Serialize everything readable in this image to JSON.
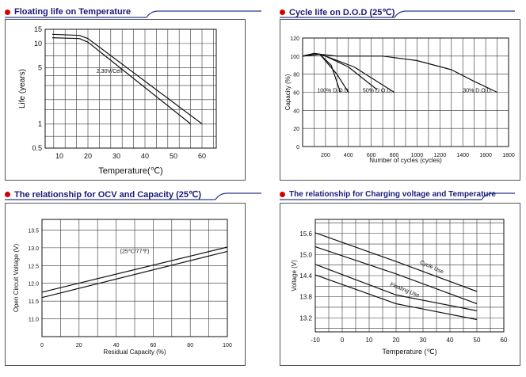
{
  "panels": {
    "p1": {
      "title": "Floating life on Temperature"
    },
    "p2": {
      "title": "Cycle life on D.O.D (25℃)"
    },
    "p3": {
      "title": "The relationship  for OCV and Capacity (25℃)"
    },
    "p4": {
      "title": "The relationship for Charging voltage and Temperature"
    }
  },
  "chart_data": [
    {
      "id": "floating-life",
      "type": "line",
      "title": "Floating life on Temperature",
      "xlabel": "Temperature(℃)",
      "ylabel": "Life (years)",
      "yscale": "log",
      "xlim": [
        5,
        65
      ],
      "ylim": [
        0.5,
        15
      ],
      "x_ticks": [
        "10",
        "20",
        "30",
        "40",
        "50",
        "60"
      ],
      "y_ticks": [
        "15",
        "10",
        "5",
        "1",
        "0.5"
      ],
      "y_tick_values": [
        15,
        10,
        5,
        1,
        0.5
      ],
      "annotations": [
        {
          "text": "2.30V/Cell",
          "x": 27.5,
          "y": 4.3
        }
      ],
      "series": [
        {
          "name": "upper",
          "points": [
            [
              7.5,
              13
            ],
            [
              17,
              12.6
            ],
            [
              20,
              11.5
            ],
            [
              60,
              1
            ]
          ]
        },
        {
          "name": "lower",
          "points": [
            [
              7.5,
              11.8
            ],
            [
              17,
              11.5
            ],
            [
              20,
              10.4
            ],
            [
              56,
              1
            ]
          ]
        }
      ]
    },
    {
      "id": "cycle-life",
      "type": "line",
      "title": "Cycle life on D.O.D (25℃)",
      "xlabel": "Number of cycles (cycles)",
      "ylabel": "Capacity (%)",
      "xlim": [
        0,
        1800
      ],
      "ylim": [
        0,
        120
      ],
      "x_ticks": [
        "200",
        "400",
        "600",
        "800",
        "1000",
        "1200",
        "1400",
        "1600",
        "1800"
      ],
      "y_ticks": [
        "0",
        "20",
        "40",
        "60",
        "80",
        "100",
        "120"
      ],
      "annotations": [
        {
          "text": "100% D.O.D.",
          "x": 270,
          "y": 60
        },
        {
          "text": "50% D.O.D.",
          "x": 655,
          "y": 60
        },
        {
          "text": "30% D.O.D.",
          "x": 1530,
          "y": 60
        }
      ],
      "series": [
        {
          "name": "100% D.O.D. (a)",
          "points": [
            [
              0,
              100
            ],
            [
              100,
              103
            ],
            [
              150,
              102
            ],
            [
              250,
              90
            ],
            [
              330,
              60
            ]
          ]
        },
        {
          "name": "100% D.O.D. (b)",
          "points": [
            [
              0,
              100
            ],
            [
              100,
              103
            ],
            [
              150,
              102
            ],
            [
              300,
              80
            ],
            [
              400,
              60
            ]
          ]
        },
        {
          "name": "50% D.O.D. (a)",
          "points": [
            [
              0,
              100
            ],
            [
              150,
              102
            ],
            [
              200,
              100
            ],
            [
              400,
              88
            ],
            [
              650,
              63
            ]
          ]
        },
        {
          "name": "50% D.O.D. (b)",
          "points": [
            [
              0,
              100
            ],
            [
              150,
              102
            ],
            [
              200,
              100
            ],
            [
              450,
              88
            ],
            [
              800,
              60
            ]
          ]
        },
        {
          "name": "30% D.O.D.",
          "points": [
            [
              0,
              100
            ],
            [
              150,
              102
            ],
            [
              300,
              100
            ],
            [
              700,
              100
            ],
            [
              1000,
              95
            ],
            [
              1300,
              85
            ],
            [
              1500,
              72
            ],
            [
              1700,
              60
            ]
          ]
        }
      ]
    },
    {
      "id": "ocv-capacity",
      "type": "line",
      "title": "The relationship  for OCV and Capacity (25℃)",
      "xlabel": "Residual Capacity (%)",
      "ylabel": "Open Circuit Voltage (V)",
      "xlim": [
        0,
        100
      ],
      "ylim": [
        10.5,
        13.8
      ],
      "x_ticks": [
        "0",
        "20",
        "40",
        "60",
        "80",
        "100"
      ],
      "y_ticks": [
        "11.0",
        "11.5",
        "12.0",
        "12.5",
        "13.0",
        "13.5"
      ],
      "y_tick_values": [
        11.0,
        11.5,
        12.0,
        12.5,
        13.0,
        13.5
      ],
      "annotations": [
        {
          "text": "(25℃/77℉)",
          "x": 50,
          "y": 12.85
        }
      ],
      "series": [
        {
          "name": "upper",
          "points": [
            [
              0,
              11.75
            ],
            [
              100,
              13.02
            ]
          ]
        },
        {
          "name": "lower",
          "points": [
            [
              0,
              11.6
            ],
            [
              100,
              12.9
            ]
          ]
        }
      ]
    },
    {
      "id": "charging-voltage",
      "type": "line",
      "title": "The relationship for Charging voltage and Temperature",
      "xlabel": "Temperature (℃)",
      "ylabel": "Voltage (V)",
      "xlim": [
        -10,
        60
      ],
      "ylim": [
        12.8,
        16.0
      ],
      "x_ticks": [
        "-10",
        "0",
        "10",
        "20",
        "30",
        "40",
        "50",
        "60"
      ],
      "y_ticks": [
        "13.2",
        "13.8",
        "14.4",
        "15.0",
        "15.6"
      ],
      "y_tick_values": [
        13.2,
        13.8,
        14.4,
        15.0,
        15.6
      ],
      "annotations": [
        {
          "text": "Cycle Use",
          "x": 33,
          "y": 14.6
        },
        {
          "text": "Floating Use",
          "x": 23,
          "y": 13.95
        }
      ],
      "series": [
        {
          "name": "Cycle Use upper",
          "points": [
            [
              -10,
              15.62
            ],
            [
              20,
              14.8
            ],
            [
              50,
              13.95
            ]
          ]
        },
        {
          "name": "Cycle Use lower",
          "points": [
            [
              -10,
              15.22
            ],
            [
              20,
              14.45
            ],
            [
              50,
              13.6
            ]
          ]
        },
        {
          "name": "Floating Use upper",
          "points": [
            [
              -10,
              14.72
            ],
            [
              20,
              13.85
            ],
            [
              50,
              13.4
            ]
          ]
        },
        {
          "name": "Floating Use lower",
          "points": [
            [
              -10,
              14.42
            ],
            [
              20,
              13.6
            ],
            [
              50,
              13.15
            ]
          ]
        }
      ]
    }
  ]
}
